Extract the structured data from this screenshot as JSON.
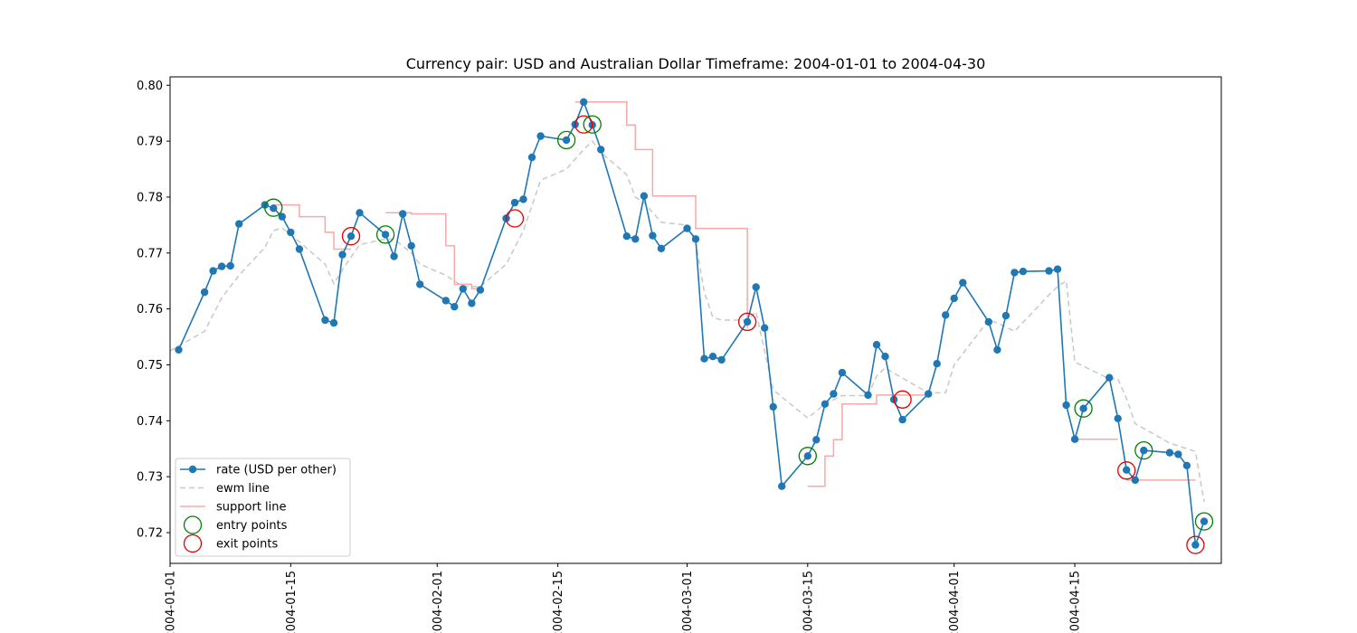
{
  "chart_data": {
    "type": "line",
    "title": "Currency pair: USD and Australian Dollar  Timeframe: 2004-01-01 to 2004-04-30",
    "xlabel": "",
    "ylabel": "",
    "x_range": [
      "2004-01-01",
      "2004-05-02"
    ],
    "ylim": [
      0.7145,
      0.8015
    ],
    "x_ticks": [
      "2004-01-01",
      "2004-01-15",
      "2004-02-01",
      "2004-02-15",
      "2004-03-01",
      "2004-03-15",
      "2004-04-01",
      "2004-04-15"
    ],
    "y_ticks": [
      0.72,
      0.73,
      0.74,
      0.75,
      0.76,
      0.77,
      0.78,
      0.79,
      0.8
    ],
    "y_tick_labels": [
      "0.72",
      "0.73",
      "0.74",
      "0.75",
      "0.76",
      "0.77",
      "0.78",
      "0.79",
      "0.80"
    ],
    "grid": false,
    "legend_position": "lower-left",
    "colors": {
      "rate": "#1f77b4",
      "ewm": "#c8c8c8",
      "support": "#f7a8a8",
      "entry": "#008000",
      "exit": "#e00000"
    },
    "legend": [
      {
        "label": "rate (USD per other)",
        "style": "line-marker",
        "color": "#1f77b4"
      },
      {
        "label": "ewm line",
        "style": "dashed",
        "color": "#c8c8c8"
      },
      {
        "label": "support line",
        "style": "solid",
        "color": "#f7a8a8"
      },
      {
        "label": "entry points",
        "style": "circle",
        "color": "#008000"
      },
      {
        "label": "exit points",
        "style": "circle",
        "color": "#e00000"
      }
    ],
    "series": [
      {
        "name": "rate (USD per other)",
        "x": [
          "2004-01-02",
          "2004-01-05",
          "2004-01-06",
          "2004-01-07",
          "2004-01-08",
          "2004-01-09",
          "2004-01-12",
          "2004-01-13",
          "2004-01-14",
          "2004-01-15",
          "2004-01-16",
          "2004-01-19",
          "2004-01-20",
          "2004-01-21",
          "2004-01-22",
          "2004-01-23",
          "2004-01-26",
          "2004-01-27",
          "2004-01-28",
          "2004-01-29",
          "2004-01-30",
          "2004-02-02",
          "2004-02-03",
          "2004-02-04",
          "2004-02-05",
          "2004-02-06",
          "2004-02-09",
          "2004-02-10",
          "2004-02-11",
          "2004-02-12",
          "2004-02-13",
          "2004-02-16",
          "2004-02-17",
          "2004-02-18",
          "2004-02-19",
          "2004-02-20",
          "2004-02-23",
          "2004-02-24",
          "2004-02-25",
          "2004-02-26",
          "2004-02-27",
          "2004-03-01",
          "2004-03-02",
          "2004-03-03",
          "2004-03-04",
          "2004-03-05",
          "2004-03-08",
          "2004-03-09",
          "2004-03-10",
          "2004-03-11",
          "2004-03-12",
          "2004-03-15",
          "2004-03-16",
          "2004-03-17",
          "2004-03-18",
          "2004-03-19",
          "2004-03-22",
          "2004-03-23",
          "2004-03-24",
          "2004-03-25",
          "2004-03-26",
          "2004-03-29",
          "2004-03-30",
          "2004-03-31",
          "2004-04-01",
          "2004-04-02",
          "2004-04-05",
          "2004-04-06",
          "2004-04-07",
          "2004-04-08",
          "2004-04-09",
          "2004-04-12",
          "2004-04-13",
          "2004-04-14",
          "2004-04-15",
          "2004-04-16",
          "2004-04-19",
          "2004-04-20",
          "2004-04-21",
          "2004-04-22",
          "2004-04-23",
          "2004-04-26",
          "2004-04-27",
          "2004-04-28",
          "2004-04-29",
          "2004-04-30"
        ],
        "values": [
          0.7527,
          0.763,
          0.7668,
          0.7676,
          0.7677,
          0.7752,
          0.7786,
          0.778,
          0.7765,
          0.7737,
          0.7707,
          0.758,
          0.7575,
          0.7697,
          0.773,
          0.7772,
          0.7733,
          0.7694,
          0.777,
          0.7713,
          0.7644,
          0.7615,
          0.7604,
          0.7636,
          0.761,
          0.7634,
          0.7762,
          0.779,
          0.7796,
          0.7871,
          0.7909,
          0.7902,
          0.793,
          0.797,
          0.7929,
          0.7885,
          0.773,
          0.7725,
          0.7802,
          0.7731,
          0.7708,
          0.7744,
          0.7725,
          0.7511,
          0.7515,
          0.7509,
          0.7577,
          0.7639,
          0.7566,
          0.7425,
          0.7283,
          0.7337,
          0.7366,
          0.743,
          0.7448,
          0.7486,
          0.7446,
          0.7536,
          0.7515,
          0.7438,
          0.7402,
          0.7448,
          0.7502,
          0.7589,
          0.7619,
          0.7647,
          0.7577,
          0.7527,
          0.7588,
          0.7665,
          0.7667,
          0.7668,
          0.7671,
          0.7428,
          0.7367,
          0.7422,
          0.7477,
          0.7404,
          0.7312,
          0.7294,
          0.7347,
          0.7343,
          0.734,
          0.732,
          0.7178,
          0.722
        ]
      },
      {
        "name": "ewm line",
        "x": [
          "2004-01-01",
          "2004-01-05",
          "2004-01-07",
          "2004-01-09",
          "2004-01-12",
          "2004-01-13",
          "2004-01-14",
          "2004-01-16",
          "2004-01-19",
          "2004-01-20",
          "2004-01-21",
          "2004-01-23",
          "2004-01-26",
          "2004-01-27",
          "2004-01-29",
          "2004-01-30",
          "2004-02-02",
          "2004-02-04",
          "2004-02-06",
          "2004-02-09",
          "2004-02-11",
          "2004-02-13",
          "2004-02-16",
          "2004-02-18",
          "2004-02-19",
          "2004-02-20",
          "2004-02-23",
          "2004-02-24",
          "2004-02-25",
          "2004-02-27",
          "2004-03-01",
          "2004-03-02",
          "2004-03-03",
          "2004-03-04",
          "2004-03-05",
          "2004-03-08",
          "2004-03-09",
          "2004-03-11",
          "2004-03-15",
          "2004-03-17",
          "2004-03-19",
          "2004-03-22",
          "2004-03-23",
          "2004-03-24",
          "2004-03-25",
          "2004-03-29",
          "2004-03-31",
          "2004-04-01",
          "2004-04-05",
          "2004-04-06",
          "2004-04-08",
          "2004-04-12",
          "2004-04-13",
          "2004-04-14",
          "2004-04-15",
          "2004-04-19",
          "2004-04-20",
          "2004-04-21",
          "2004-04-22",
          "2004-04-26",
          "2004-04-27",
          "2004-04-28",
          "2004-04-29",
          "2004-04-30"
        ],
        "values": [
          0.7525,
          0.756,
          0.762,
          0.766,
          0.771,
          0.774,
          0.7745,
          0.772,
          0.768,
          0.7645,
          0.767,
          0.7715,
          0.7725,
          0.7725,
          0.77,
          0.768,
          0.766,
          0.764,
          0.764,
          0.768,
          0.774,
          0.783,
          0.785,
          0.7885,
          0.79,
          0.788,
          0.784,
          0.78,
          0.779,
          0.7755,
          0.775,
          0.772,
          0.763,
          0.7585,
          0.758,
          0.758,
          0.7595,
          0.7455,
          0.7405,
          0.743,
          0.7445,
          0.7445,
          0.748,
          0.7495,
          0.7485,
          0.745,
          0.745,
          0.75,
          0.758,
          0.7575,
          0.756,
          0.7625,
          0.764,
          0.765,
          0.7505,
          0.7475,
          0.7475,
          0.744,
          0.7395,
          0.736,
          0.7355,
          0.735,
          0.7345,
          0.7255
        ]
      },
      {
        "name": "support line",
        "type": "step",
        "segments": [
          {
            "x": [
              "2004-01-13",
              "2004-01-14",
              "2004-01-15",
              "2004-01-16",
              "2004-01-19",
              "2004-01-20",
              "2004-01-21",
              "2004-01-22"
            ],
            "values": [
              0.7786,
              0.7786,
              0.7786,
              0.7765,
              0.7737,
              0.7707,
              0.7707,
              0.7707
            ]
          },
          {
            "x": [
              "2004-01-26",
              "2004-01-27",
              "2004-01-28",
              "2004-01-29",
              "2004-01-30",
              "2004-02-02",
              "2004-02-03",
              "2004-02-04",
              "2004-02-05",
              "2004-02-06"
            ],
            "values": [
              0.7772,
              0.7772,
              0.7772,
              0.777,
              0.777,
              0.7713,
              0.7644,
              0.7644,
              0.7636,
              0.7634
            ]
          },
          {
            "x": [
              "2004-02-17",
              "2004-02-18",
              "2004-02-19",
              "2004-02-20",
              "2004-02-23",
              "2004-02-24",
              "2004-02-25",
              "2004-02-26",
              "2004-02-27",
              "2004-03-01",
              "2004-03-02",
              "2004-03-03",
              "2004-03-04",
              "2004-03-05",
              "2004-03-08"
            ],
            "values": [
              0.797,
              0.797,
              0.797,
              0.797,
              0.7929,
              0.7885,
              0.7885,
              0.7802,
              0.7802,
              0.7802,
              0.7744,
              0.7744,
              0.7744,
              0.7744,
              0.7566
            ]
          },
          {
            "x": [
              "2004-03-15",
              "2004-03-16",
              "2004-03-17",
              "2004-03-18",
              "2004-03-19",
              "2004-03-22",
              "2004-03-23",
              "2004-03-24",
              "2004-03-25",
              "2004-03-26",
              "2004-03-29"
            ],
            "values": [
              0.7283,
              0.7283,
              0.7337,
              0.7366,
              0.743,
              0.743,
              0.7446,
              0.7446,
              0.7446,
              0.7446,
              0.7446
            ]
          },
          {
            "x": [
              "2004-04-15",
              "2004-04-19",
              "2004-04-20"
            ],
            "values": [
              0.7367,
              0.7367,
              0.7367
            ]
          },
          {
            "x": [
              "2004-04-21",
              "2004-04-22",
              "2004-04-23",
              "2004-04-26",
              "2004-04-27",
              "2004-04-28",
              "2004-04-29"
            ],
            "values": [
              0.7294,
              0.7294,
              0.7294,
              0.7294,
              0.7294,
              0.7294,
              0.7294
            ]
          }
        ]
      }
    ],
    "entry_points": [
      {
        "x": "2004-01-13",
        "y": 0.7781
      },
      {
        "x": "2004-01-26",
        "y": 0.7733
      },
      {
        "x": "2004-02-16",
        "y": 0.7902
      },
      {
        "x": "2004-02-19",
        "y": 0.793
      },
      {
        "x": "2004-03-15",
        "y": 0.7337
      },
      {
        "x": "2004-04-16",
        "y": 0.7422
      },
      {
        "x": "2004-04-23",
        "y": 0.7347
      },
      {
        "x": "2004-04-30",
        "y": 0.722
      }
    ],
    "exit_points": [
      {
        "x": "2004-01-22",
        "y": 0.773
      },
      {
        "x": "2004-02-10",
        "y": 0.7762
      },
      {
        "x": "2004-02-18",
        "y": 0.793
      },
      {
        "x": "2004-03-08",
        "y": 0.7577
      },
      {
        "x": "2004-03-26",
        "y": 0.7438
      },
      {
        "x": "2004-04-21",
        "y": 0.7311
      },
      {
        "x": "2004-04-29",
        "y": 0.7178
      }
    ]
  }
}
